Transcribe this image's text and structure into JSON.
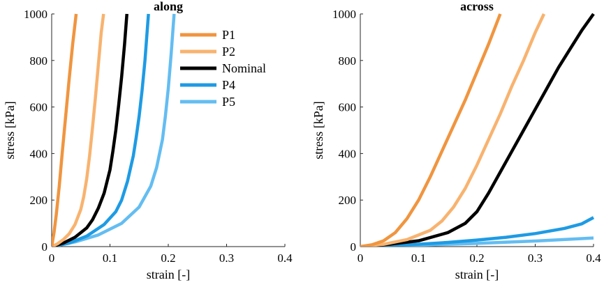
{
  "chart_data": [
    {
      "type": "line",
      "title": "along",
      "xlabel": "strain [-]",
      "ylabel": "stress [kPa]",
      "xlim": [
        0,
        0.4
      ],
      "ylim": [
        0,
        1000
      ],
      "xticks": [
        "0",
        "0.1",
        "0.2",
        "0.3",
        "0.4"
      ],
      "yticks": [
        "0",
        "200",
        "400",
        "600",
        "800",
        "1000"
      ],
      "legend": "top-right",
      "series": [
        {
          "name": "P1",
          "color": "#f0953f",
          "x": [
            0,
            0.004,
            0.008,
            0.013,
            0.018,
            0.024,
            0.03,
            0.036,
            0.042
          ],
          "y": [
            0,
            60,
            140,
            260,
            400,
            560,
            720,
            870,
            1000
          ]
        },
        {
          "name": "P2",
          "color": "#f8b36f",
          "x": [
            0,
            0.01,
            0.02,
            0.03,
            0.04,
            0.05,
            0.055,
            0.06,
            0.065,
            0.07,
            0.075,
            0.08,
            0.085,
            0.089
          ],
          "y": [
            0,
            12,
            30,
            55,
            95,
            160,
            215,
            290,
            390,
            510,
            640,
            780,
            920,
            1000
          ]
        },
        {
          "name": "Nominal",
          "color": "#000000",
          "x": [
            0,
            0.02,
            0.04,
            0.06,
            0.07,
            0.08,
            0.09,
            0.1,
            0.105,
            0.11,
            0.115,
            0.12,
            0.125,
            0.129
          ],
          "y": [
            0,
            15,
            40,
            80,
            115,
            165,
            230,
            330,
            410,
            500,
            610,
            730,
            870,
            1000
          ]
        },
        {
          "name": "P4",
          "color": "#1e9be4",
          "x": [
            0,
            0.03,
            0.06,
            0.09,
            0.11,
            0.12,
            0.13,
            0.14,
            0.145,
            0.15,
            0.155,
            0.16,
            0.166
          ],
          "y": [
            0,
            15,
            45,
            95,
            150,
            200,
            280,
            390,
            470,
            560,
            670,
            800,
            1000
          ]
        },
        {
          "name": "P5",
          "color": "#63bdf1",
          "x": [
            0,
            0.04,
            0.08,
            0.12,
            0.15,
            0.17,
            0.18,
            0.19,
            0.195,
            0.2,
            0.205,
            0.21
          ],
          "y": [
            0,
            20,
            50,
            100,
            170,
            260,
            340,
            460,
            560,
            680,
            830,
            1000
          ]
        }
      ]
    },
    {
      "type": "line",
      "title": "across",
      "xlabel": "strain [-]",
      "ylabel": "stress [kPa]",
      "xlim": [
        0,
        0.4
      ],
      "ylim": [
        0,
        1000
      ],
      "xticks": [
        "0",
        "0.1",
        "0.2",
        "0.3",
        "0.4"
      ],
      "yticks": [
        "0",
        "200",
        "400",
        "600",
        "800",
        "1000"
      ],
      "legend": "none",
      "series": [
        {
          "name": "P1",
          "color": "#f0953f",
          "x": [
            0,
            0.02,
            0.04,
            0.06,
            0.08,
            0.1,
            0.12,
            0.14,
            0.16,
            0.18,
            0.2,
            0.22,
            0.24
          ],
          "y": [
            0,
            8,
            25,
            60,
            120,
            200,
            300,
            410,
            520,
            630,
            750,
            870,
            1000
          ]
        },
        {
          "name": "P2",
          "color": "#f8b36f",
          "x": [
            0,
            0.04,
            0.08,
            0.12,
            0.14,
            0.16,
            0.18,
            0.2,
            0.22,
            0.24,
            0.26,
            0.28,
            0.3,
            0.315
          ],
          "y": [
            0,
            10,
            30,
            70,
            110,
            170,
            250,
            350,
            460,
            570,
            690,
            800,
            920,
            1000
          ]
        },
        {
          "name": "Nominal",
          "color": "#000000",
          "x": [
            0,
            0.05,
            0.1,
            0.15,
            0.18,
            0.2,
            0.22,
            0.24,
            0.26,
            0.28,
            0.3,
            0.32,
            0.34,
            0.36,
            0.38,
            0.4
          ],
          "y": [
            0,
            10,
            25,
            60,
            100,
            150,
            230,
            320,
            410,
            500,
            590,
            680,
            770,
            850,
            930,
            1000
          ]
        },
        {
          "name": "P4",
          "color": "#1e9be4",
          "x": [
            0,
            0.05,
            0.1,
            0.15,
            0.2,
            0.25,
            0.3,
            0.35,
            0.38,
            0.4
          ],
          "y": [
            0,
            4,
            10,
            18,
            28,
            40,
            56,
            78,
            98,
            125
          ]
        },
        {
          "name": "P5",
          "color": "#63bdf1",
          "x": [
            0,
            0.1,
            0.2,
            0.3,
            0.4
          ],
          "y": [
            0,
            6,
            14,
            24,
            37
          ]
        }
      ]
    }
  ]
}
